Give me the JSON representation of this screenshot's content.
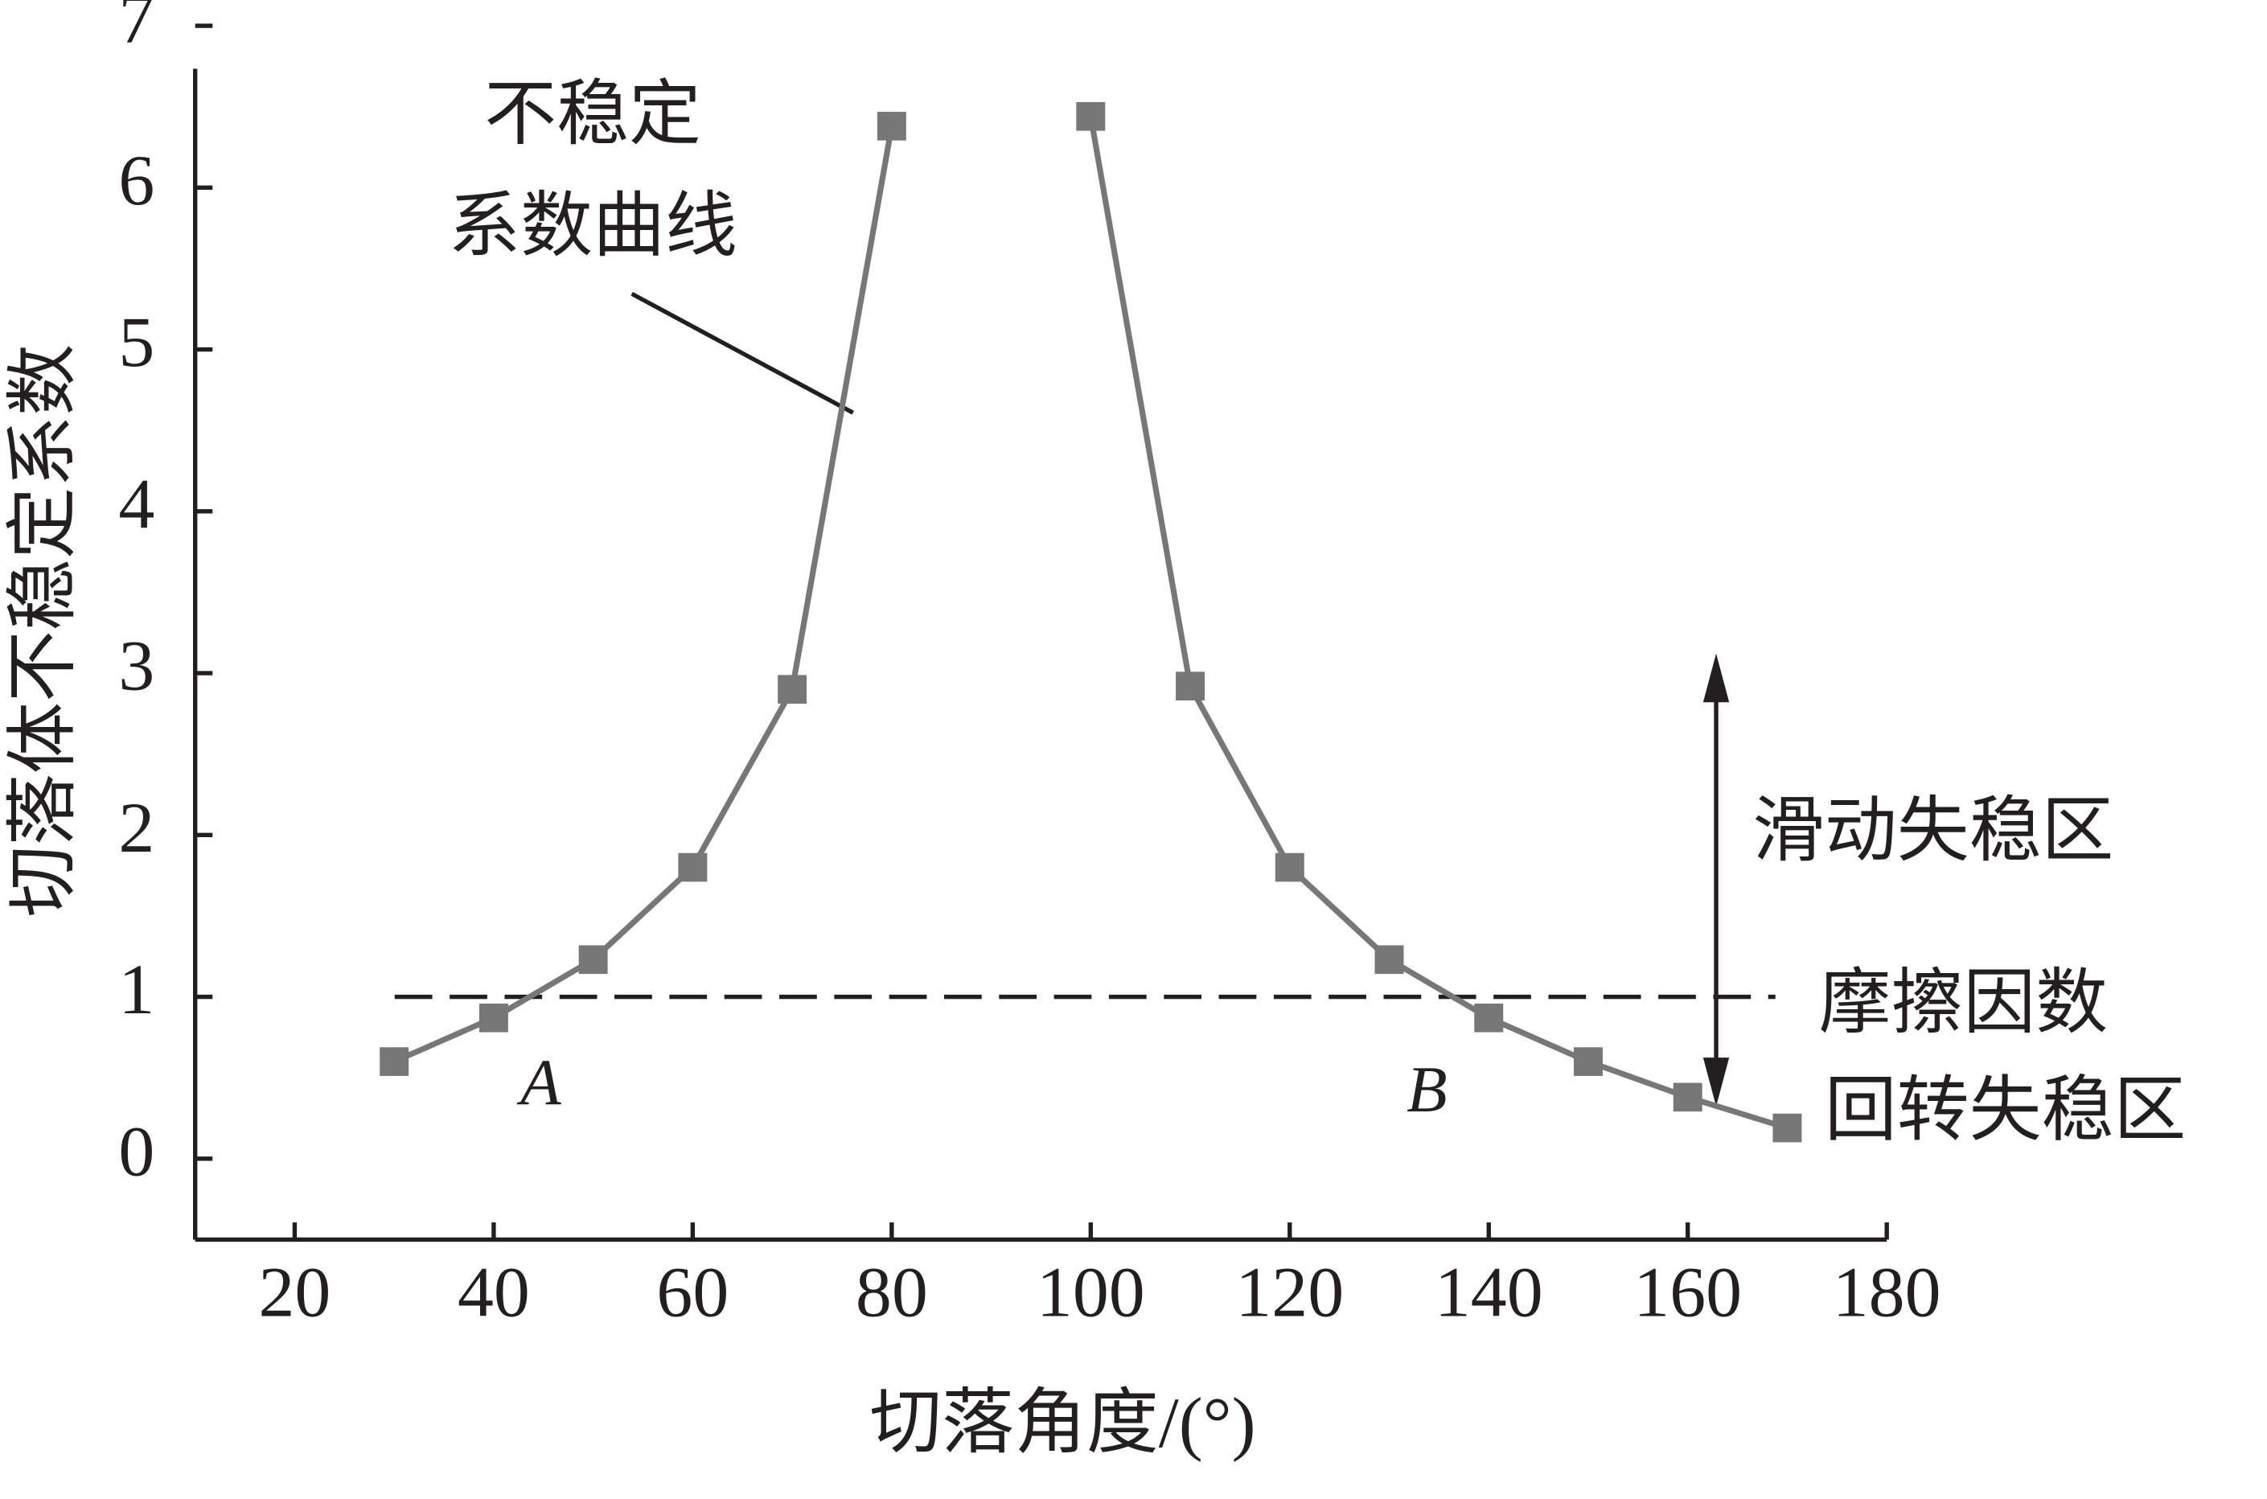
{
  "chart_data": {
    "type": "line",
    "x_label": "切落角度/(°)",
    "y_label": "切落体不稳定系数",
    "x": [
      30,
      40,
      50,
      60,
      70,
      80,
      90,
      100,
      110,
      120,
      130,
      140,
      150,
      160,
      170
    ],
    "series": [
      {
        "name": "不稳定系数曲线",
        "color": "#777777",
        "values": [
          0.6,
          0.87,
          1.23,
          1.8,
          2.9,
          6.38,
          null,
          6.44,
          2.92,
          1.8,
          1.23,
          0.87,
          0.6,
          0.38,
          0.19
        ]
      }
    ],
    "xlim": [
      10,
      180
    ],
    "xticks": [
      20,
      40,
      60,
      80,
      100,
      120,
      140,
      160,
      180
    ],
    "ylim": [
      -0.5,
      7
    ],
    "yticks": [
      0,
      1,
      2,
      3,
      4,
      5,
      6,
      7
    ],
    "reference_line": {
      "value": 1,
      "label": "摩擦因数"
    },
    "annotations": [
      "不稳定",
      "系数曲线",
      "A",
      "B",
      "滑动失稳区",
      "回转失稳区"
    ]
  }
}
